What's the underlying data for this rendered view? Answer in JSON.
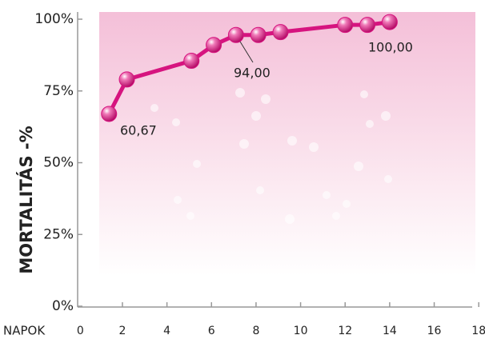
{
  "chart_data": {
    "type": "line",
    "ylabel": "MORTALITÁS -%",
    "xlabel": "NAPOK",
    "x": [
      1.4,
      2.2,
      5.1,
      6.1,
      7.1,
      8.1,
      9.1,
      12,
      13,
      14
    ],
    "series": [
      {
        "name": "Mortalitás",
        "color": "#d6147f",
        "values": [
          67,
          79,
          85.5,
          91,
          94.5,
          94.5,
          95.5,
          98,
          98,
          99
        ]
      }
    ],
    "annotations": [
      "60,67",
      "94,00",
      "100,00"
    ],
    "xlim": [
      0,
      18
    ],
    "xticks": [
      0,
      2,
      4,
      6,
      8,
      10,
      12,
      14,
      16,
      18
    ],
    "ylim": [
      0,
      100
    ],
    "yticks": [
      {
        "value": 0,
        "label": "0%"
      },
      {
        "value": 25,
        "label": "25%"
      },
      {
        "value": 50,
        "label": "50%"
      },
      {
        "value": 75,
        "label": "75%"
      },
      {
        "value": 100,
        "label": "100%"
      }
    ],
    "grid": false
  }
}
